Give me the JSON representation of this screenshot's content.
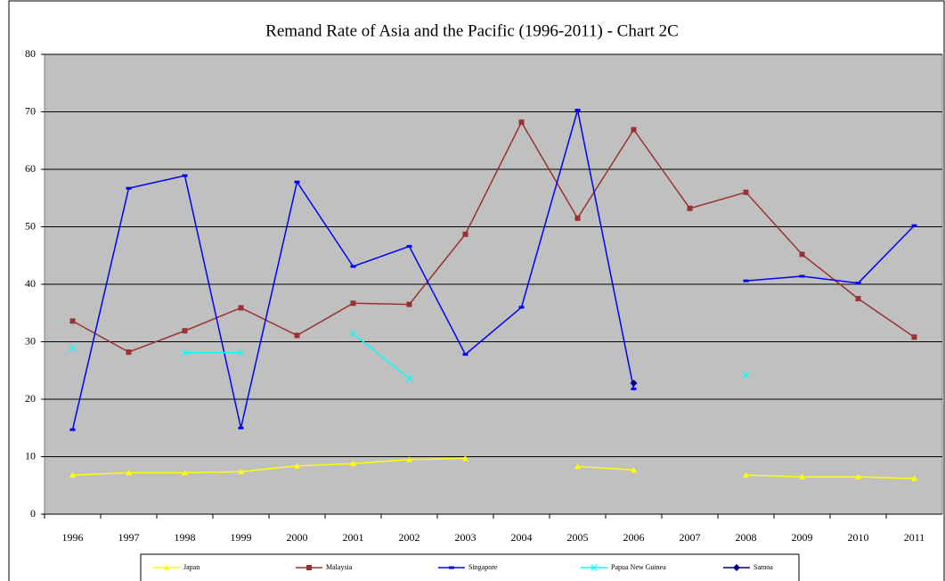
{
  "chart_data": {
    "type": "line",
    "title": "Remand Rate of Asia and the Pacific (1996-2011) - Chart 2C",
    "categories": [
      "1996",
      "1997",
      "1998",
      "1999",
      "2000",
      "2001",
      "2002",
      "2003",
      "2004",
      "2005",
      "2006",
      "2007",
      "2008",
      "2009",
      "2010",
      "2011"
    ],
    "series": [
      {
        "name": "Japan",
        "color": "#ffff00",
        "marker": "triangle",
        "values": [
          6.8,
          7.2,
          7.2,
          7.4,
          8.4,
          8.8,
          9.5,
          9.7,
          null,
          8.3,
          7.7,
          null,
          6.8,
          6.5,
          6.5,
          6.2
        ]
      },
      {
        "name": "Malaysia",
        "color": "#993333",
        "marker": "square",
        "values": [
          33.6,
          28.2,
          31.9,
          35.9,
          31.1,
          36.7,
          36.5,
          48.7,
          68.2,
          51.5,
          66.9,
          53.2,
          56.0,
          45.2,
          37.5,
          30.8
        ]
      },
      {
        "name": "Singapore",
        "color": "#0000ff",
        "marker": "dash",
        "values": [
          14.7,
          56.7,
          58.9,
          15.0,
          57.8,
          43.1,
          46.6,
          27.8,
          36.0,
          70.3,
          21.8,
          null,
          40.6,
          41.4,
          40.2,
          50.2
        ]
      },
      {
        "name": "Papua New Guinea",
        "color": "#00ffff",
        "marker": "x",
        "values": [
          28.9,
          null,
          28.1,
          28.1,
          null,
          31.4,
          23.6,
          null,
          null,
          null,
          null,
          null,
          24.2,
          null,
          null,
          null
        ]
      },
      {
        "name": "Samoa",
        "color": "#000080",
        "marker": "diamond",
        "values": [
          null,
          null,
          null,
          null,
          null,
          null,
          null,
          null,
          null,
          null,
          22.8,
          null,
          null,
          null,
          null,
          null
        ]
      }
    ],
    "ylim": [
      0,
      80
    ],
    "yticks": [
      0,
      10,
      20,
      30,
      40,
      50,
      60,
      70,
      80
    ],
    "grid": true,
    "legend": "bottom"
  }
}
